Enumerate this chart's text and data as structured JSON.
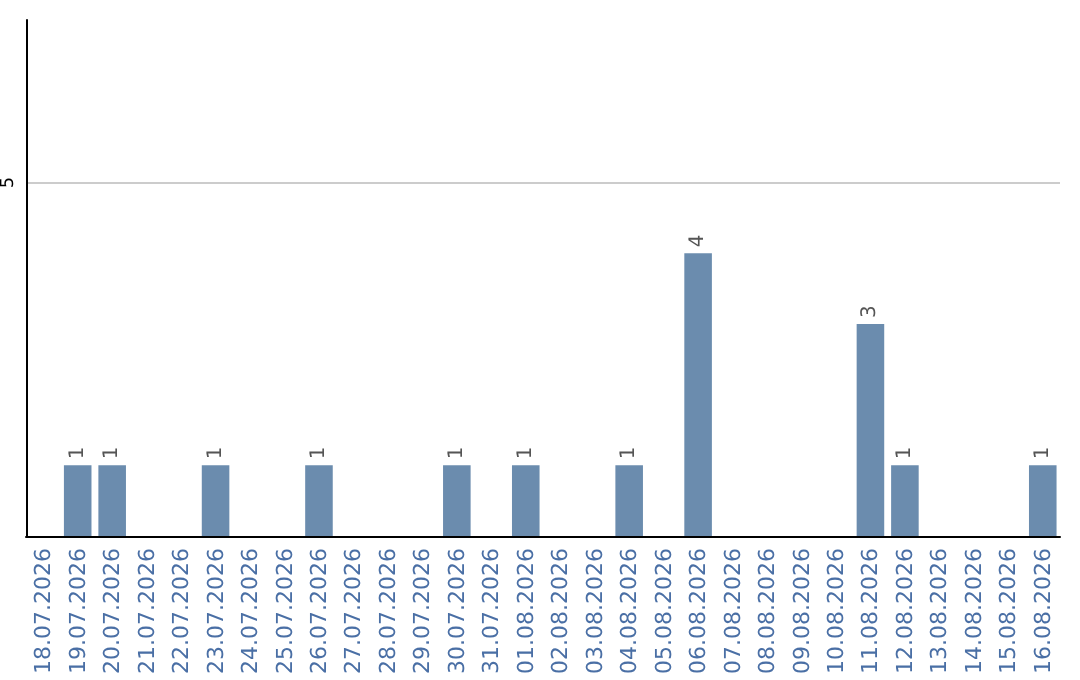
{
  "chart_data": {
    "type": "bar",
    "categories": [
      "18.07.2026",
      "19.07.2026",
      "20.07.2026",
      "21.07.2026",
      "22.07.2026",
      "23.07.2026",
      "24.07.2026",
      "25.07.2026",
      "26.07.2026",
      "27.07.2026",
      "28.07.2026",
      "29.07.2026",
      "30.07.2026",
      "31.07.2026",
      "01.08.2026",
      "02.08.2026",
      "03.08.2026",
      "04.08.2026",
      "05.08.2026",
      "06.08.2026",
      "07.08.2026",
      "08.08.2026",
      "09.08.2026",
      "10.08.2026",
      "11.08.2026",
      "12.08.2026",
      "13.08.2026",
      "14.08.2026",
      "15.08.2026",
      "16.08.2026"
    ],
    "values": [
      null,
      1,
      1,
      null,
      null,
      1,
      null,
      null,
      1,
      null,
      null,
      null,
      1,
      null,
      1,
      null,
      null,
      1,
      null,
      4,
      null,
      null,
      null,
      null,
      3,
      1,
      null,
      null,
      null,
      1
    ],
    "color": "#6b8cae",
    "ylim": [
      0,
      7.3
    ],
    "yticks": [
      5
    ],
    "grid": "y",
    "data_labels": true
  }
}
